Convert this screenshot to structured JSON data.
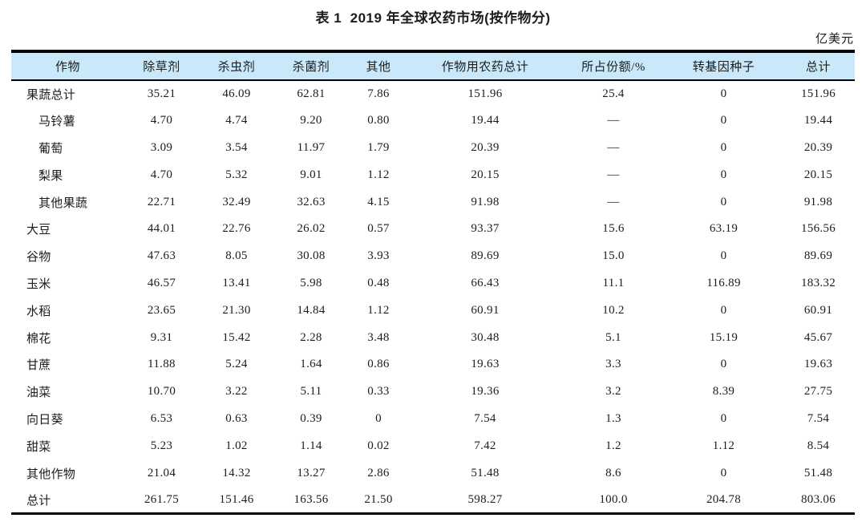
{
  "page": {
    "title": "表 1  2019 年全球农药市场(按作物分)",
    "unit_label": "亿美元"
  },
  "colors": {
    "header_bg": "#c9e8fa",
    "rule": "#000000",
    "text": "#1c1c1c"
  },
  "table": {
    "columns": [
      "作物",
      "除草剂",
      "杀虫剂",
      "杀菌剂",
      "其他",
      "作物用农药总计",
      "所占份额/%",
      "转基因种子",
      "总计"
    ],
    "rows": [
      {
        "crop": "果蔬总计",
        "indent": false,
        "values": [
          "35.21",
          "46.09",
          "62.81",
          "7.86",
          "151.96",
          "25.4",
          "0",
          "151.96"
        ]
      },
      {
        "crop": "马铃薯",
        "indent": true,
        "values": [
          "4.70",
          "4.74",
          "9.20",
          "0.80",
          "19.44",
          "—",
          "0",
          "19.44"
        ]
      },
      {
        "crop": "葡萄",
        "indent": true,
        "values": [
          "3.09",
          "3.54",
          "11.97",
          "1.79",
          "20.39",
          "—",
          "0",
          "20.39"
        ]
      },
      {
        "crop": "梨果",
        "indent": true,
        "values": [
          "4.70",
          "5.32",
          "9.01",
          "1.12",
          "20.15",
          "—",
          "0",
          "20.15"
        ]
      },
      {
        "crop": "其他果蔬",
        "indent": true,
        "values": [
          "22.71",
          "32.49",
          "32.63",
          "4.15",
          "91.98",
          "—",
          "0",
          "91.98"
        ]
      },
      {
        "crop": "大豆",
        "indent": false,
        "values": [
          "44.01",
          "22.76",
          "26.02",
          "0.57",
          "93.37",
          "15.6",
          "63.19",
          "156.56"
        ]
      },
      {
        "crop": "谷物",
        "indent": false,
        "values": [
          "47.63",
          "8.05",
          "30.08",
          "3.93",
          "89.69",
          "15.0",
          "0",
          "89.69"
        ]
      },
      {
        "crop": "玉米",
        "indent": false,
        "values": [
          "46.57",
          "13.41",
          "5.98",
          "0.48",
          "66.43",
          "11.1",
          "116.89",
          "183.32"
        ]
      },
      {
        "crop": "水稻",
        "indent": false,
        "values": [
          "23.65",
          "21.30",
          "14.84",
          "1.12",
          "60.91",
          "10.2",
          "0",
          "60.91"
        ]
      },
      {
        "crop": "棉花",
        "indent": false,
        "values": [
          "9.31",
          "15.42",
          "2.28",
          "3.48",
          "30.48",
          "5.1",
          "15.19",
          "45.67"
        ]
      },
      {
        "crop": "甘蔗",
        "indent": false,
        "values": [
          "11.88",
          "5.24",
          "1.64",
          "0.86",
          "19.63",
          "3.3",
          "0",
          "19.63"
        ]
      },
      {
        "crop": "油菜",
        "indent": false,
        "values": [
          "10.70",
          "3.22",
          "5.11",
          "0.33",
          "19.36",
          "3.2",
          "8.39",
          "27.75"
        ]
      },
      {
        "crop": "向日葵",
        "indent": false,
        "values": [
          "6.53",
          "0.63",
          "0.39",
          "0",
          "7.54",
          "1.3",
          "0",
          "7.54"
        ]
      },
      {
        "crop": "甜菜",
        "indent": false,
        "values": [
          "5.23",
          "1.02",
          "1.14",
          "0.02",
          "7.42",
          "1.2",
          "1.12",
          "8.54"
        ]
      },
      {
        "crop": "其他作物",
        "indent": false,
        "values": [
          "21.04",
          "14.32",
          "13.27",
          "2.86",
          "51.48",
          "8.6",
          "0",
          "51.48"
        ]
      },
      {
        "crop": "总计",
        "indent": false,
        "values": [
          "261.75",
          "151.46",
          "163.56",
          "21.50",
          "598.27",
          "100.0",
          "204.78",
          "803.06"
        ]
      }
    ]
  }
}
